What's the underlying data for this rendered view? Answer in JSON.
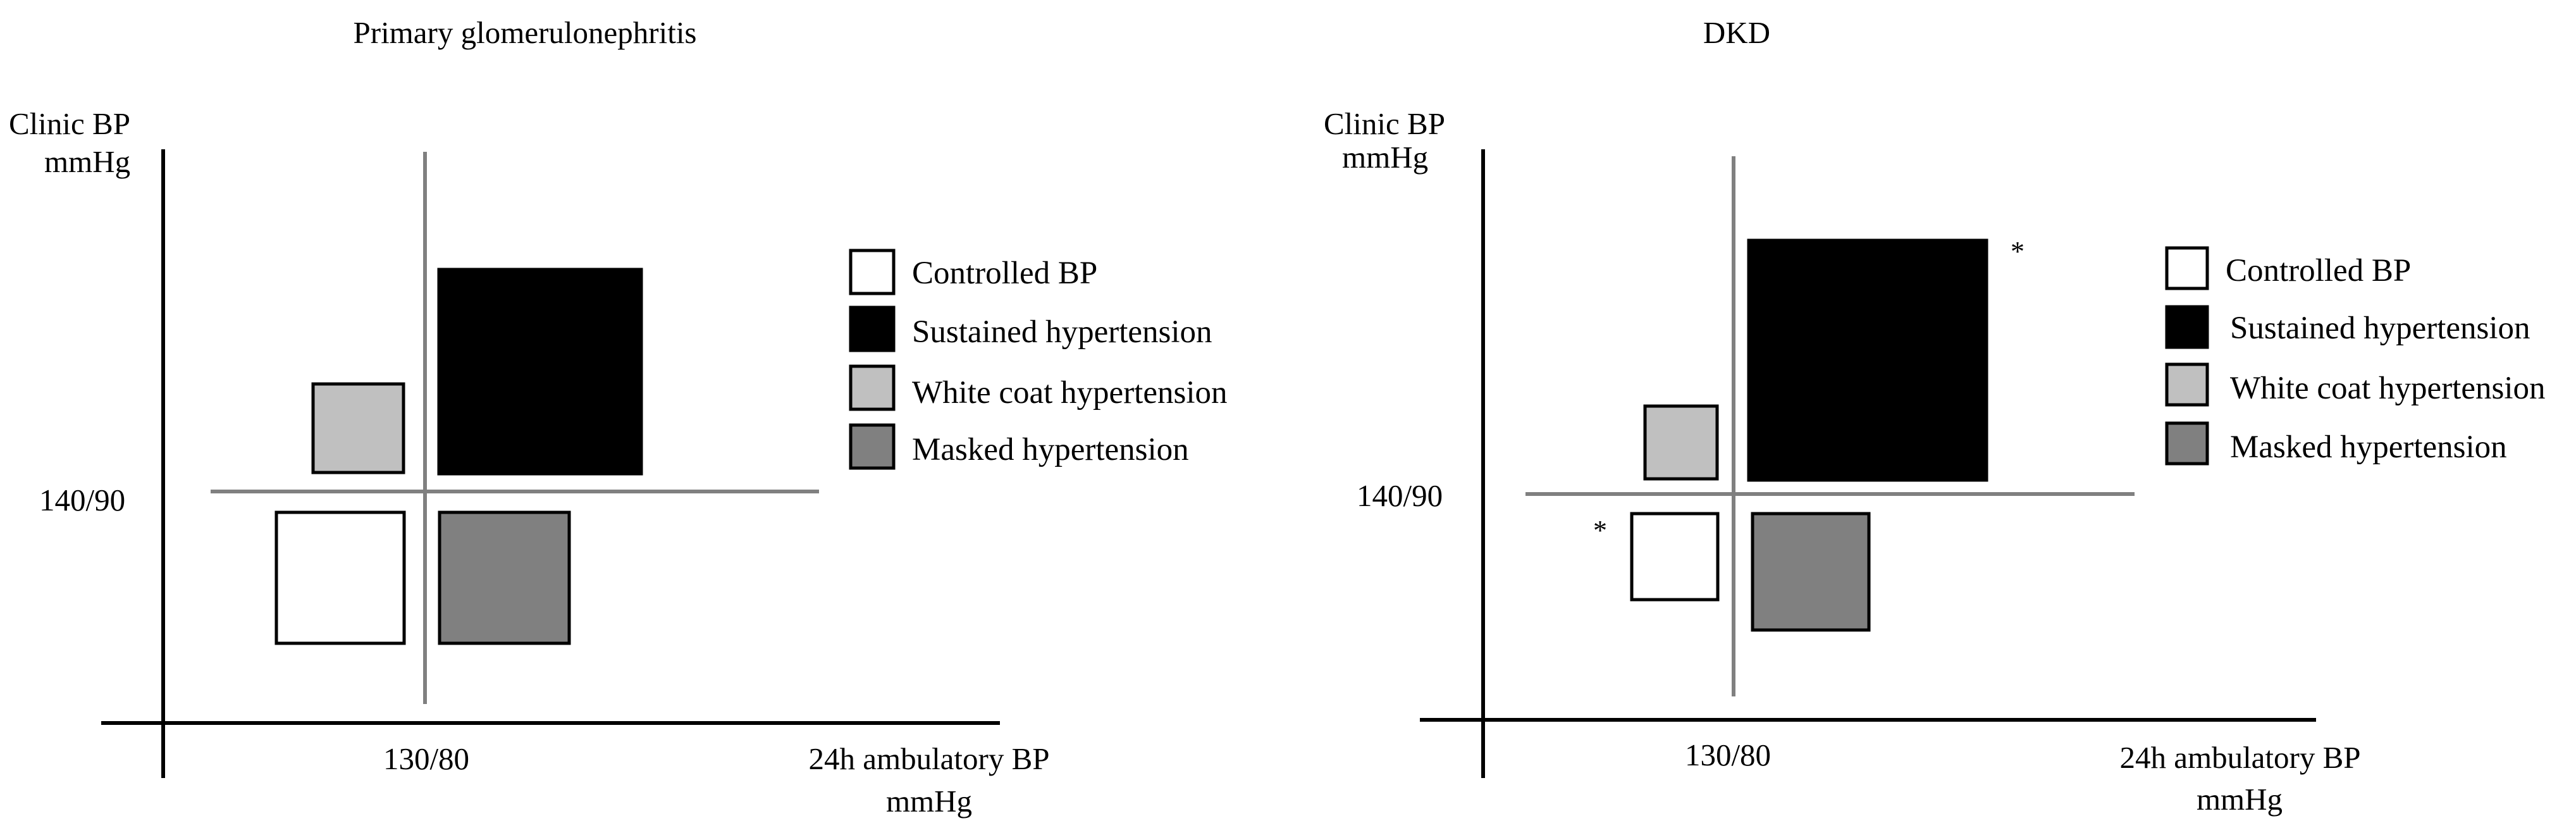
{
  "colors": {
    "axis": "#000000",
    "divider": "#808080",
    "box_stroke": "#000000",
    "controlled": "#ffffff",
    "sustained": "#000000",
    "white_coat": "#c0c0c0",
    "masked": "#808080"
  },
  "legend": [
    {
      "key": "controlled",
      "label": "Controlled BP"
    },
    {
      "key": "sustained",
      "label": "Sustained hypertension"
    },
    {
      "key": "white_coat",
      "label": "White coat hypertension"
    },
    {
      "key": "masked",
      "label": "Masked hypertension"
    }
  ],
  "axes": {
    "y_label_line1": "Clinic BP",
    "y_label_line2": "mmHg",
    "x_label_line1": "24h ambulatory BP",
    "x_label_line2": "mmHg",
    "clinic_threshold": "140/90",
    "ambulatory_threshold": "130/80"
  },
  "panels": [
    {
      "title": "Primary glomerulonephritis",
      "annotations": {
        "controlled": "",
        "sustained": ""
      }
    },
    {
      "title": "DKD",
      "annotations": {
        "controlled": "*",
        "sustained": "*"
      }
    }
  ]
}
